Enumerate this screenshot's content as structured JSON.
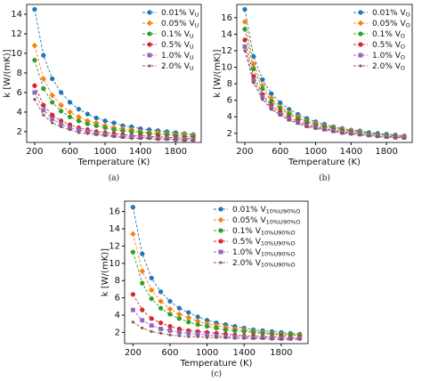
{
  "chart_data": [
    {
      "type": "line",
      "caption": "(a)",
      "x_label": "Temperature (K)",
      "y_label": "k [W/(mK)]",
      "x": [
        200,
        300,
        400,
        500,
        600,
        700,
        800,
        900,
        1000,
        1100,
        1200,
        1300,
        1400,
        1500,
        1600,
        1700,
        1800,
        1900,
        2000
      ],
      "xlim": [
        110,
        2090
      ],
      "xticks": [
        200,
        600,
        1000,
        1400,
        1800
      ],
      "ylim": [
        0.9,
        15.0
      ],
      "yticks": [
        2,
        4,
        6,
        8,
        10,
        12,
        14
      ],
      "legend": "upper right",
      "series": [
        {
          "name": "0.01% V",
          "subscript": "U",
          "color": "#1f77b4",
          "marker": "o",
          "values": [
            14.5,
            9.8,
            7.4,
            6.0,
            5.0,
            4.3,
            3.8,
            3.4,
            3.1,
            2.9,
            2.6,
            2.5,
            2.3,
            2.2,
            2.1,
            2.0,
            1.9,
            1.8,
            1.7
          ]
        },
        {
          "name": "0.05% V",
          "subscript": "U",
          "color": "#ff7f0e",
          "marker": "D",
          "values": [
            10.8,
            7.4,
            5.7,
            4.7,
            4.0,
            3.5,
            3.1,
            2.9,
            2.6,
            2.4,
            2.3,
            2.2,
            2.0,
            1.9,
            1.9,
            1.8,
            1.7,
            1.7,
            1.6
          ]
        },
        {
          "name": "0.1% V",
          "subscript": "U",
          "color": "#2ca02c",
          "marker": "o",
          "values": [
            9.3,
            6.4,
            5.0,
            4.1,
            3.5,
            3.1,
            2.8,
            2.6,
            2.4,
            2.2,
            2.1,
            2.0,
            1.9,
            1.8,
            1.7,
            1.7,
            1.6,
            1.5,
            1.5
          ]
        },
        {
          "name": "0.5% V",
          "subscript": "U",
          "color": "#d62728",
          "marker": "o",
          "values": [
            6.7,
            4.7,
            3.7,
            3.1,
            2.7,
            2.4,
            2.2,
            2.0,
            1.9,
            1.8,
            1.7,
            1.6,
            1.6,
            1.5,
            1.5,
            1.4,
            1.4,
            1.3,
            1.3
          ]
        },
        {
          "name": "1.0% V",
          "subscript": "U",
          "color": "#9467bd",
          "marker": "s",
          "values": [
            6.0,
            4.2,
            3.3,
            2.8,
            2.4,
            2.2,
            2.0,
            1.8,
            1.7,
            1.6,
            1.5,
            1.5,
            1.4,
            1.4,
            1.3,
            1.3,
            1.2,
            1.2,
            1.2
          ]
        },
        {
          "name": "2.0% V",
          "subscript": "U",
          "color": "#8c564b",
          "marker": ".",
          "values": [
            5.3,
            3.7,
            2.9,
            2.5,
            2.2,
            1.9,
            1.8,
            1.7,
            1.6,
            1.5,
            1.4,
            1.3,
            1.3,
            1.3,
            1.2,
            1.2,
            1.2,
            1.1,
            1.1
          ]
        }
      ]
    },
    {
      "type": "line",
      "caption": "(b)",
      "x_label": "Temperature (K)",
      "y_label": "k [W/(mK)]",
      "x": [
        200,
        300,
        400,
        500,
        600,
        700,
        800,
        900,
        1000,
        1100,
        1200,
        1300,
        1400,
        1500,
        1600,
        1700,
        1800,
        1900,
        2000
      ],
      "xlim": [
        110,
        2090
      ],
      "xticks": [
        200,
        600,
        1000,
        1400,
        1800
      ],
      "ylim": [
        0.9,
        17.6
      ],
      "yticks": [
        2,
        4,
        6,
        8,
        10,
        12,
        14,
        16
      ],
      "legend": "upper right",
      "series": [
        {
          "name": "0.01% V",
          "subscript": "O",
          "color": "#1f77b4",
          "marker": "o",
          "values": [
            17.0,
            11.3,
            8.5,
            6.8,
            5.7,
            4.9,
            4.3,
            3.8,
            3.4,
            3.1,
            2.8,
            2.6,
            2.4,
            2.3,
            2.1,
            2.0,
            1.9,
            1.8,
            1.7
          ]
        },
        {
          "name": "0.05% V",
          "subscript": "O",
          "color": "#ff7f0e",
          "marker": "D",
          "values": [
            15.5,
            10.4,
            7.8,
            6.3,
            5.2,
            4.5,
            4.0,
            3.5,
            3.2,
            2.9,
            2.7,
            2.5,
            2.3,
            2.2,
            2.0,
            1.9,
            1.8,
            1.7,
            1.7
          ]
        },
        {
          "name": "0.1% V",
          "subscript": "O",
          "color": "#2ca02c",
          "marker": "o",
          "values": [
            14.6,
            9.8,
            7.4,
            5.9,
            5.0,
            4.3,
            3.8,
            3.4,
            3.0,
            2.8,
            2.6,
            2.4,
            2.2,
            2.1,
            2.0,
            1.9,
            1.8,
            1.7,
            1.6
          ]
        },
        {
          "name": "0.5% V",
          "subscript": "O",
          "color": "#d62728",
          "marker": "o",
          "values": [
            13.3,
            8.9,
            6.7,
            5.4,
            4.6,
            3.9,
            3.5,
            3.1,
            2.8,
            2.6,
            2.4,
            2.2,
            2.1,
            1.9,
            1.8,
            1.7,
            1.6,
            1.6,
            1.5
          ]
        },
        {
          "name": "1.0% V",
          "subscript": "O",
          "color": "#9467bd",
          "marker": "s",
          "values": [
            12.5,
            8.4,
            6.4,
            5.1,
            4.3,
            3.7,
            3.3,
            2.9,
            2.7,
            2.5,
            2.3,
            2.1,
            2.0,
            1.9,
            1.8,
            1.7,
            1.6,
            1.5,
            1.5
          ]
        },
        {
          "name": "2.0% V",
          "subscript": "O",
          "color": "#8c564b",
          "marker": ".",
          "values": [
            12.0,
            8.1,
            6.1,
            4.9,
            4.2,
            3.6,
            3.2,
            2.8,
            2.6,
            2.4,
            2.2,
            2.0,
            1.9,
            1.8,
            1.7,
            1.6,
            1.5,
            1.5,
            1.4
          ]
        }
      ]
    },
    {
      "type": "line",
      "caption": "(c)",
      "x_label": "Temperature (K)",
      "y_label": "k [W/(mK)]",
      "x": [
        200,
        300,
        400,
        500,
        600,
        700,
        800,
        900,
        1000,
        1100,
        1200,
        1300,
        1400,
        1500,
        1600,
        1700,
        1800,
        1900,
        2000
      ],
      "xlim": [
        110,
        2090
      ],
      "xticks": [
        200,
        600,
        1000,
        1400,
        1800
      ],
      "ylim": [
        0.7,
        17.2
      ],
      "yticks": [
        2,
        4,
        6,
        8,
        10,
        12,
        14,
        16
      ],
      "legend": "upper right",
      "series": [
        {
          "name": "0.01% V",
          "subscript": "10%U90%O",
          "color": "#1f77b4",
          "marker": "o",
          "values": [
            16.5,
            11.1,
            8.3,
            6.7,
            5.6,
            4.8,
            4.3,
            3.8,
            3.4,
            3.1,
            2.9,
            2.7,
            2.5,
            2.3,
            2.2,
            2.1,
            2.0,
            1.9,
            1.8
          ]
        },
        {
          "name": "0.05% V",
          "subscript": "10%U90%O",
          "color": "#ff7f0e",
          "marker": "D",
          "values": [
            13.4,
            9.1,
            6.9,
            5.6,
            4.7,
            4.1,
            3.7,
            3.3,
            3.0,
            2.8,
            2.6,
            2.4,
            2.3,
            2.1,
            2.0,
            1.9,
            1.8,
            1.8,
            1.7
          ]
        },
        {
          "name": "0.1% V",
          "subscript": "10%U90%O",
          "color": "#2ca02c",
          "marker": "o",
          "values": [
            11.3,
            7.7,
            5.9,
            4.8,
            4.1,
            3.6,
            3.2,
            2.9,
            2.7,
            2.5,
            2.3,
            2.2,
            2.1,
            2.0,
            1.9,
            1.8,
            1.7,
            1.7,
            1.6
          ]
        },
        {
          "name": "0.5% V",
          "subscript": "10%U90%O",
          "color": "#d62728",
          "marker": "o",
          "values": [
            6.4,
            4.6,
            3.6,
            3.1,
            2.7,
            2.4,
            2.2,
            2.1,
            2.0,
            1.9,
            1.8,
            1.7,
            1.6,
            1.6,
            1.5,
            1.5,
            1.5,
            1.4,
            1.4
          ]
        },
        {
          "name": "1.0% V",
          "subscript": "10%U90%O",
          "color": "#9467bd",
          "marker": "s",
          "values": [
            4.6,
            3.4,
            2.8,
            2.4,
            2.2,
            2.0,
            1.9,
            1.8,
            1.7,
            1.6,
            1.5,
            1.5,
            1.5,
            1.4,
            1.4,
            1.4,
            1.3,
            1.3,
            1.3
          ]
        },
        {
          "name": "2.0% V",
          "subscript": "10%U90%O",
          "color": "#8c564b",
          "marker": ".",
          "values": [
            3.2,
            2.5,
            2.1,
            1.9,
            1.7,
            1.6,
            1.5,
            1.5,
            1.4,
            1.4,
            1.4,
            1.3,
            1.3,
            1.3,
            1.3,
            1.2,
            1.2,
            1.2,
            1.2
          ]
        }
      ]
    }
  ]
}
